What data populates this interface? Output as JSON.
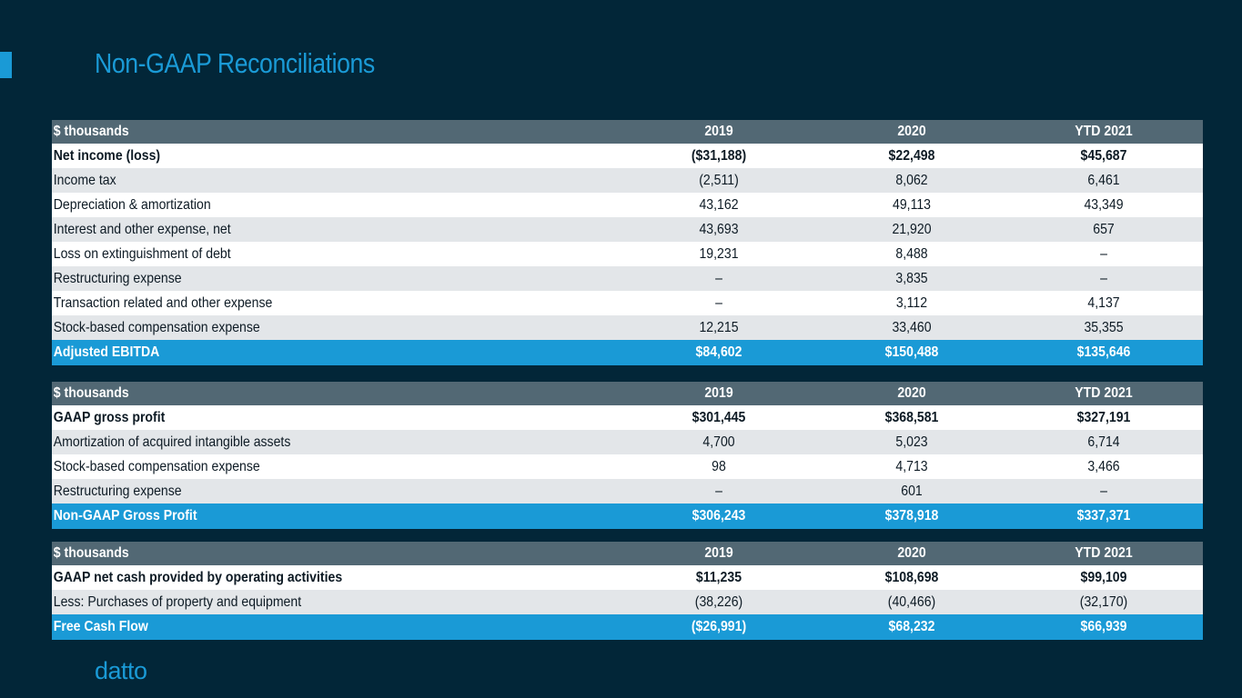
{
  "title": "Non-GAAP Reconciliations",
  "logo": "datto",
  "tables": [
    {
      "header": [
        "$ thousands",
        "2019",
        "2020",
        "YTD 2021"
      ],
      "rows": [
        {
          "label": "Net income (loss)",
          "values": [
            "($31,188)",
            "$22,498",
            "$45,687"
          ],
          "bold": true
        },
        {
          "label": "Income tax",
          "values": [
            "(2,511)",
            "8,062",
            "6,461"
          ]
        },
        {
          "label": "Depreciation & amortization",
          "values": [
            "43,162",
            "49,113",
            "43,349"
          ]
        },
        {
          "label": "Interest and other expense, net",
          "values": [
            "43,693",
            "21,920",
            "657"
          ]
        },
        {
          "label": "Loss on extinguishment of debt",
          "values": [
            "19,231",
            "8,488",
            "–"
          ]
        },
        {
          "label": "Restructuring expense",
          "values": [
            "–",
            "3,835",
            "–"
          ]
        },
        {
          "label": "Transaction related and other expense",
          "values": [
            "–",
            "3,112",
            "4,137"
          ]
        },
        {
          "label": "Stock-based compensation expense",
          "values": [
            "12,215",
            "33,460",
            "35,355"
          ]
        }
      ],
      "total": {
        "label": "Adjusted EBITDA",
        "values": [
          "$84,602",
          "$150,488",
          "$135,646"
        ]
      }
    },
    {
      "header": [
        "$ thousands",
        "2019",
        "2020",
        "YTD 2021"
      ],
      "rows": [
        {
          "label": "GAAP gross profit",
          "values": [
            "$301,445",
            "$368,581",
            "$327,191"
          ],
          "bold": true
        },
        {
          "label": "Amortization of acquired intangible assets",
          "values": [
            "4,700",
            "5,023",
            "6,714"
          ]
        },
        {
          "label": "Stock-based compensation expense",
          "values": [
            "98",
            "4,713",
            "3,466"
          ]
        },
        {
          "label": "Restructuring expense",
          "values": [
            "–",
            "601",
            "–"
          ]
        }
      ],
      "total": {
        "label": "Non-GAAP Gross Profit",
        "values": [
          "$306,243",
          "$378,918",
          "$337,371"
        ]
      }
    },
    {
      "header": [
        "$ thousands",
        "2019",
        "2020",
        "YTD 2021"
      ],
      "rows": [
        {
          "label": "GAAP net cash provided by operating activities",
          "values": [
            "$11,235",
            "$108,698",
            "$99,109"
          ],
          "bold": true
        },
        {
          "label": "Less: Purchases of property and equipment",
          "values": [
            "(38,226)",
            "(40,466)",
            "(32,170)"
          ]
        }
      ],
      "total": {
        "label": "Free Cash Flow",
        "values": [
          "($26,991)",
          "$68,232",
          "$66,939"
        ]
      }
    }
  ]
}
